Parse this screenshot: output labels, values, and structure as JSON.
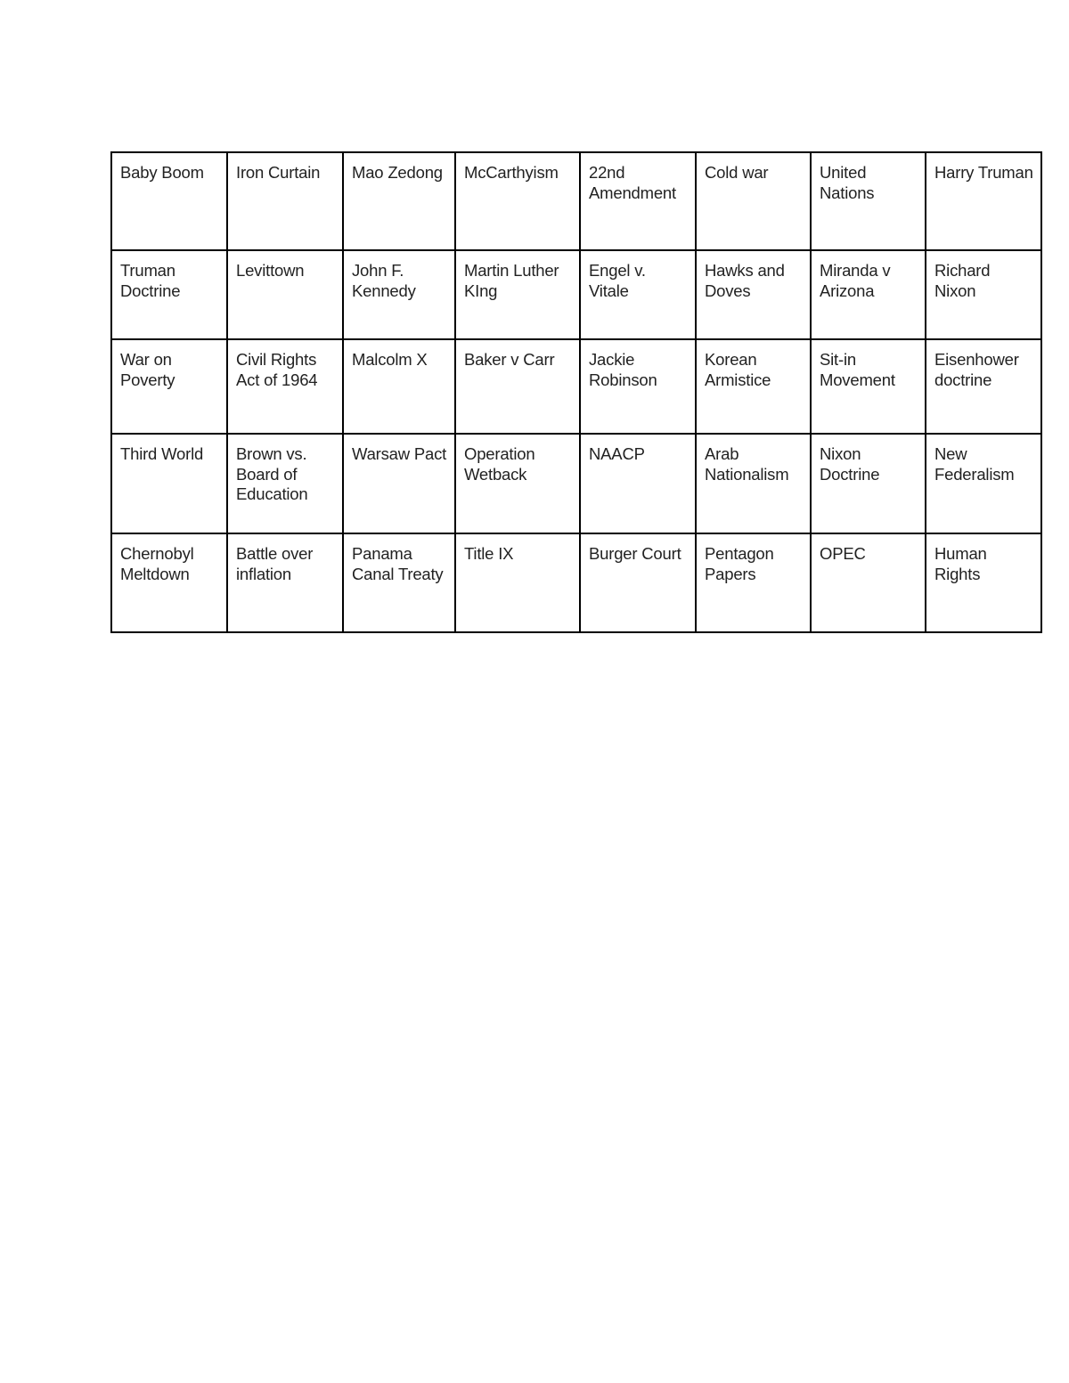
{
  "table": {
    "rows": [
      [
        "Baby Boom",
        "Iron Curtain",
        "Mao Zedong",
        "McCarthyism",
        "22nd Amendment",
        "Cold war",
        "United Nations",
        "Harry Truman"
      ],
      [
        "Truman Doctrine",
        "Levittown",
        "John F. Kennedy",
        "Martin Luther KIng",
        "Engel v. Vitale",
        "Hawks and Doves",
        "Miranda v Arizona",
        "Richard Nixon"
      ],
      [
        "War on Poverty",
        "Civil Rights Act of 1964",
        "Malcolm X",
        "Baker v Carr",
        "Jackie Robinson",
        "Korean Armistice",
        "Sit-in Movement",
        "Eisenhower doctrine"
      ],
      [
        "Third World",
        "Brown vs. Board of Education",
        "Warsaw Pact",
        "Operation Wetback",
        "NAACP",
        "Arab Nationalism",
        "Nixon Doctrine",
        "New Federalism"
      ],
      [
        "Chernobyl Meltdown",
        "Battle over inflation",
        "Panama Canal Treaty",
        "Title IX",
        "Burger Court",
        "Pentagon Papers",
        "OPEC",
        "Human Rights"
      ]
    ]
  }
}
